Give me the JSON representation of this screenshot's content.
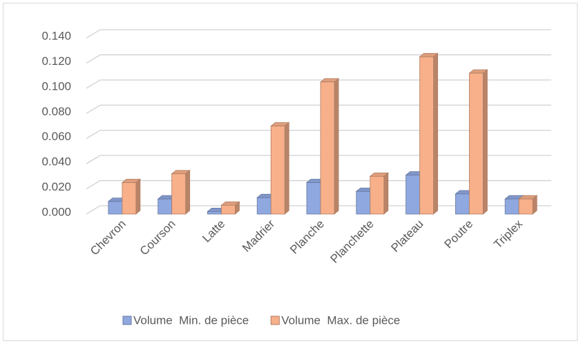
{
  "chart_data": {
    "type": "bar",
    "categories": [
      "Chevron",
      "Courson",
      "Latte",
      "Madrier",
      "Planche",
      "Planchette",
      "Plateau",
      "Poutre",
      "Triplex"
    ],
    "series": [
      {
        "name": "Volume  Min. de pièce",
        "color": "#8fa8e0",
        "values": [
          0.01,
          0.012,
          0.002,
          0.013,
          0.025,
          0.018,
          0.031,
          0.016,
          0.012
        ]
      },
      {
        "name": "Volume  Max. de pièce",
        "color": "#f7b08a",
        "values": [
          0.025,
          0.032,
          0.007,
          0.07,
          0.105,
          0.03,
          0.125,
          0.112,
          0.012
        ]
      }
    ],
    "ylim": [
      0,
      0.14
    ],
    "yticks": [
      {
        "value": 0,
        "label": "0.000"
      },
      {
        "value": 0.02,
        "label": "0.020"
      },
      {
        "value": 0.04,
        "label": "0.040"
      },
      {
        "value": 0.06,
        "label": "0.060"
      },
      {
        "value": 0.08,
        "label": "0.080"
      },
      {
        "value": 0.1,
        "label": "0.100"
      },
      {
        "value": 0.12,
        "label": "0.120"
      },
      {
        "value": 0.14,
        "label": "0.140"
      }
    ],
    "grid": true,
    "legend": "bottom"
  }
}
